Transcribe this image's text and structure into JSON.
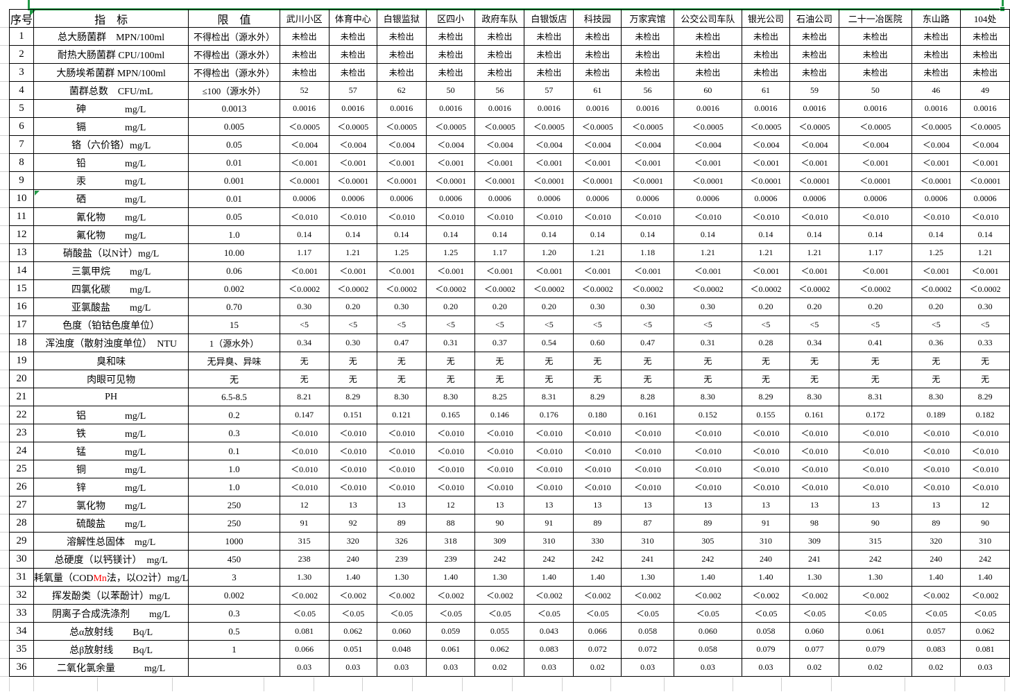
{
  "colors": {
    "selection_green": "#229a47",
    "border_black": "#000000",
    "gridline_gray": "#cfcfcf",
    "red_text": "#ff0000"
  },
  "table": {
    "headers": {
      "no": "序号",
      "indicator": "指　标",
      "limit": "限　值",
      "sites": [
        "武川小区",
        "体育中心",
        "白银监狱",
        "区四小",
        "政府车队",
        "白银饭店",
        "科技园",
        "万家宾馆",
        "公交公司车队",
        "银光公司",
        "石油公司",
        "二十一冶医院",
        "东山路",
        "104处"
      ]
    },
    "rows": [
      {
        "no": "1",
        "indicator": "总大肠菌群　MPN/100ml",
        "limit": "不得检出（源水外）",
        "values": [
          "未检出",
          "未检出",
          "未检出",
          "未检出",
          "未检出",
          "未检出",
          "未检出",
          "未检出",
          "未检出",
          "未检出",
          "未检出",
          "未检出",
          "未检出",
          "未检出"
        ]
      },
      {
        "no": "2",
        "indicator": "耐热大肠菌群 CPU/100ml",
        "limit": "不得检出（源水外）",
        "values": [
          "未检出",
          "未检出",
          "未检出",
          "未检出",
          "未检出",
          "未检出",
          "未检出",
          "未检出",
          "未检出",
          "未检出",
          "未检出",
          "未检出",
          "未检出",
          "未检出"
        ]
      },
      {
        "no": "3",
        "indicator": "大肠埃希菌群 MPN/100ml",
        "limit": "不得检出（源水外）",
        "values": [
          "未检出",
          "未检出",
          "未检出",
          "未检出",
          "未检出",
          "未检出",
          "未检出",
          "未检出",
          "未检出",
          "未检出",
          "未检出",
          "未检出",
          "未检出",
          "未检出"
        ]
      },
      {
        "no": "4",
        "indicator": "菌群总数　CFU/mL",
        "limit": "≤100（源水外）",
        "values": [
          "52",
          "57",
          "62",
          "50",
          "56",
          "57",
          "61",
          "56",
          "60",
          "61",
          "59",
          "50",
          "46",
          "49"
        ]
      },
      {
        "no": "5",
        "indicator": "砷　　　　mg/L",
        "limit": "0.0013",
        "values": [
          "0.0016",
          "0.0016",
          "0.0016",
          "0.0016",
          "0.0016",
          "0.0016",
          "0.0016",
          "0.0016",
          "0.0016",
          "0.0016",
          "0.0016",
          "0.0016",
          "0.0016",
          "0.0016"
        ]
      },
      {
        "no": "6",
        "indicator": "镉　　　　mg/L",
        "limit": "0.005",
        "values": [
          "＜0.0005",
          "＜0.0005",
          "＜0.0005",
          "＜0.0005",
          "＜0.0005",
          "＜0.0005",
          "＜0.0005",
          "＜0.0005",
          "＜0.0005",
          "＜0.0005",
          "＜0.0005",
          "＜0.0005",
          "＜0.0005",
          "＜0.0005"
        ]
      },
      {
        "no": "7",
        "indicator": "铬（六价铬）mg/L",
        "limit": "0.05",
        "values": [
          "＜0.004",
          "＜0.004",
          "＜0.004",
          "＜0.004",
          "＜0.004",
          "＜0.004",
          "＜0.004",
          "＜0.004",
          "＜0.004",
          "＜0.004",
          "＜0.004",
          "＜0.004",
          "＜0.004",
          "＜0.004"
        ]
      },
      {
        "no": "8",
        "indicator": "铅　　　　mg/L",
        "limit": "0.01",
        "values": [
          "＜0.001",
          "＜0.001",
          "＜0.001",
          "＜0.001",
          "＜0.001",
          "＜0.001",
          "＜0.001",
          "＜0.001",
          "＜0.001",
          "＜0.001",
          "＜0.001",
          "＜0.001",
          "＜0.001",
          "＜0.001"
        ]
      },
      {
        "no": "9",
        "indicator": "汞　　　　mg/L",
        "limit": "0.001",
        "values": [
          "＜0.0001",
          "＜0.0001",
          "＜0.0001",
          "＜0.0001",
          "＜0.0001",
          "＜0.0001",
          "＜0.0001",
          "＜0.0001",
          "＜0.0001",
          "＜0.0001",
          "＜0.0001",
          "＜0.0001",
          "＜0.0001",
          "＜0.0001"
        ]
      },
      {
        "no": "10",
        "indicator": "硒　　　　mg/L",
        "limit": "0.01",
        "flag": true,
        "values": [
          "0.0006",
          "0.0006",
          "0.0006",
          "0.0006",
          "0.0006",
          "0.0006",
          "0.0006",
          "0.0006",
          "0.0006",
          "0.0006",
          "0.0006",
          "0.0006",
          "0.0006",
          "0.0006"
        ]
      },
      {
        "no": "11",
        "indicator": "氰化物　　mg/L",
        "limit": "0.05",
        "values": [
          "＜0.010",
          "＜0.010",
          "＜0.010",
          "＜0.010",
          "＜0.010",
          "＜0.010",
          "＜0.010",
          "＜0.010",
          "＜0.010",
          "＜0.010",
          "＜0.010",
          "＜0.010",
          "＜0.010",
          "＜0.010"
        ]
      },
      {
        "no": "12",
        "indicator": "氟化物　　mg/L",
        "limit": "1.0",
        "values": [
          "0.14",
          "0.14",
          "0.14",
          "0.14",
          "0.14",
          "0.14",
          "0.14",
          "0.14",
          "0.14",
          "0.14",
          "0.14",
          "0.14",
          "0.14",
          "0.14"
        ]
      },
      {
        "no": "13",
        "indicator": "硝酸盐（以N计）mg/L",
        "limit": "10.00",
        "values": [
          "1.17",
          "1.21",
          "1.25",
          "1.25",
          "1.17",
          "1.20",
          "1.21",
          "1.18",
          "1.21",
          "1.21",
          "1.21",
          "1.17",
          "1.25",
          "1.21"
        ]
      },
      {
        "no": "14",
        "indicator": "三氯甲烷　　mg/L",
        "limit": "0.06",
        "values": [
          "＜0.001",
          "＜0.001",
          "＜0.001",
          "＜0.001",
          "＜0.001",
          "＜0.001",
          "＜0.001",
          "＜0.001",
          "＜0.001",
          "＜0.001",
          "＜0.001",
          "＜0.001",
          "＜0.001",
          "＜0.001"
        ]
      },
      {
        "no": "15",
        "indicator": "四氯化碳　　mg/L",
        "limit": "0.002",
        "values": [
          "＜0.0002",
          "＜0.0002",
          "＜0.0002",
          "＜0.0002",
          "＜0.0002",
          "＜0.0002",
          "＜0.0002",
          "＜0.0002",
          "＜0.0002",
          "＜0.0002",
          "＜0.0002",
          "＜0.0002",
          "＜0.0002",
          "＜0.0002"
        ]
      },
      {
        "no": "16",
        "indicator": "亚氯酸盐　　mg/L",
        "limit": "0.70",
        "values": [
          "0.30",
          "0.20",
          "0.30",
          "0.20",
          "0.20",
          "0.20",
          "0.30",
          "0.30",
          "0.30",
          "0.20",
          "0.20",
          "0.20",
          "0.20",
          "0.30"
        ]
      },
      {
        "no": "17",
        "indicator": "色度（铂钴色度单位）",
        "limit": "15",
        "values": [
          "<5",
          "<5",
          "<5",
          "<5",
          "<5",
          "<5",
          "<5",
          "<5",
          "<5",
          "<5",
          "<5",
          "<5",
          "<5",
          "<5"
        ]
      },
      {
        "no": "18",
        "indicator": "浑浊度（散射浊度单位）　NTU",
        "limit": "1（源水外）",
        "values": [
          "0.34",
          "0.30",
          "0.47",
          "0.31",
          "0.37",
          "0.54",
          "0.60",
          "0.47",
          "0.31",
          "0.28",
          "0.34",
          "0.41",
          "0.36",
          "0.33"
        ]
      },
      {
        "no": "19",
        "indicator": "臭和味",
        "limit": "无异臭、异味",
        "values": [
          "无",
          "无",
          "无",
          "无",
          "无",
          "无",
          "无",
          "无",
          "无",
          "无",
          "无",
          "无",
          "无",
          "无"
        ]
      },
      {
        "no": "20",
        "indicator": "肉眼可见物",
        "limit": "无",
        "values": [
          "无",
          "无",
          "无",
          "无",
          "无",
          "无",
          "无",
          "无",
          "无",
          "无",
          "无",
          "无",
          "无",
          "无"
        ]
      },
      {
        "no": "21",
        "indicator": "PH",
        "limit": "6.5-8.5",
        "values": [
          "8.21",
          "8.29",
          "8.30",
          "8.30",
          "8.25",
          "8.31",
          "8.29",
          "8.28",
          "8.30",
          "8.29",
          "8.30",
          "8.31",
          "8.30",
          "8.29"
        ]
      },
      {
        "no": "22",
        "indicator": "铝　　　　mg/L",
        "limit": "0.2",
        "values": [
          "0.147",
          "0.151",
          "0.121",
          "0.165",
          "0.146",
          "0.176",
          "0.180",
          "0.161",
          "0.152",
          "0.155",
          "0.161",
          "0.172",
          "0.189",
          "0.182"
        ]
      },
      {
        "no": "23",
        "indicator": "铁　　　　mg/L",
        "limit": "0.3",
        "values": [
          "＜0.010",
          "＜0.010",
          "＜0.010",
          "＜0.010",
          "＜0.010",
          "＜0.010",
          "＜0.010",
          "＜0.010",
          "＜0.010",
          "＜0.010",
          "＜0.010",
          "＜0.010",
          "＜0.010",
          "＜0.010"
        ]
      },
      {
        "no": "24",
        "indicator": "锰　　　　mg/L",
        "limit": "0.1",
        "values": [
          "＜0.010",
          "＜0.010",
          "＜0.010",
          "＜0.010",
          "＜0.010",
          "＜0.010",
          "＜0.010",
          "＜0.010",
          "＜0.010",
          "＜0.010",
          "＜0.010",
          "＜0.010",
          "＜0.010",
          "＜0.010"
        ]
      },
      {
        "no": "25",
        "indicator": "铜　　　　mg/L",
        "limit": "1.0",
        "values": [
          "＜0.010",
          "＜0.010",
          "＜0.010",
          "＜0.010",
          "＜0.010",
          "＜0.010",
          "＜0.010",
          "＜0.010",
          "＜0.010",
          "＜0.010",
          "＜0.010",
          "＜0.010",
          "＜0.010",
          "＜0.010"
        ]
      },
      {
        "no": "26",
        "indicator": "锌　　　　mg/L",
        "limit": "1.0",
        "values": [
          "＜0.010",
          "＜0.010",
          "＜0.010",
          "＜0.010",
          "＜0.010",
          "＜0.010",
          "＜0.010",
          "＜0.010",
          "＜0.010",
          "＜0.010",
          "＜0.010",
          "＜0.010",
          "＜0.010",
          "＜0.010"
        ]
      },
      {
        "no": "27",
        "indicator": "氯化物　　mg/L",
        "limit": "250",
        "values": [
          "12",
          "13",
          "13",
          "12",
          "13",
          "13",
          "13",
          "13",
          "13",
          "13",
          "13",
          "13",
          "13",
          "12"
        ]
      },
      {
        "no": "28",
        "indicator": "硫酸盐　　mg/L",
        "limit": "250",
        "values": [
          "91",
          "92",
          "89",
          "88",
          "90",
          "91",
          "89",
          "87",
          "89",
          "91",
          "98",
          "90",
          "89",
          "90"
        ]
      },
      {
        "no": "29",
        "indicator": "溶解性总固体　mg/L",
        "limit": "1000",
        "values": [
          "315",
          "320",
          "326",
          "318",
          "309",
          "310",
          "330",
          "310",
          "305",
          "310",
          "309",
          "315",
          "320",
          "310"
        ]
      },
      {
        "no": "30",
        "indicator": "总硬度（以钙镁计）　mg/L",
        "limit": "450",
        "values": [
          "238",
          "240",
          "239",
          "239",
          "242",
          "242",
          "242",
          "241",
          "242",
          "240",
          "241",
          "242",
          "240",
          "242"
        ]
      },
      {
        "no": "31",
        "indicator": "耗氧量（COD",
        "indicator_red": "Mn",
        "indicator_post": "法，以O2计）mg/L",
        "limit": "3",
        "values": [
          "1.30",
          "1.40",
          "1.30",
          "1.40",
          "1.30",
          "1.40",
          "1.40",
          "1.30",
          "1.40",
          "1.40",
          "1.30",
          "1.30",
          "1.40",
          "1.40"
        ]
      },
      {
        "no": "32",
        "indicator": "挥发酚类（以苯酚计）mg/L",
        "limit": "0.002",
        "values": [
          "＜0.002",
          "＜0.002",
          "＜0.002",
          "＜0.002",
          "＜0.002",
          "＜0.002",
          "＜0.002",
          "＜0.002",
          "＜0.002",
          "＜0.002",
          "＜0.002",
          "＜0.002",
          "＜0.002",
          "＜0.002"
        ]
      },
      {
        "no": "33",
        "indicator": "阴离子合成洗涤剂　　mg/L",
        "limit": "0.3",
        "values": [
          "＜0.05",
          "＜0.05",
          "＜0.05",
          "＜0.05",
          "＜0.05",
          "＜0.05",
          "＜0.05",
          "＜0.05",
          "＜0.05",
          "＜0.05",
          "＜0.05",
          "＜0.05",
          "＜0.05",
          "＜0.05"
        ]
      },
      {
        "no": "34",
        "indicator": "总α放射线　　Bq/L",
        "limit": "0.5",
        "values": [
          "0.081",
          "0.062",
          "0.060",
          "0.059",
          "0.055",
          "0.043",
          "0.066",
          "0.058",
          "0.060",
          "0.058",
          "0.060",
          "0.061",
          "0.057",
          "0.062"
        ]
      },
      {
        "no": "35",
        "indicator": "总β放射线　　Bq/L",
        "limit": "1",
        "values": [
          "0.066",
          "0.051",
          "0.048",
          "0.061",
          "0.062",
          "0.083",
          "0.072",
          "0.072",
          "0.058",
          "0.079",
          "0.077",
          "0.079",
          "0.083",
          "0.081"
        ]
      },
      {
        "no": "36",
        "indicator": "二氧化氯余量　　　mg/L",
        "limit": "",
        "values": [
          "0.03",
          "0.03",
          "0.03",
          "0.03",
          "0.02",
          "0.03",
          "0.02",
          "0.03",
          "0.03",
          "0.03",
          "0.02",
          "0.02",
          "0.02",
          "0.03"
        ]
      }
    ]
  }
}
